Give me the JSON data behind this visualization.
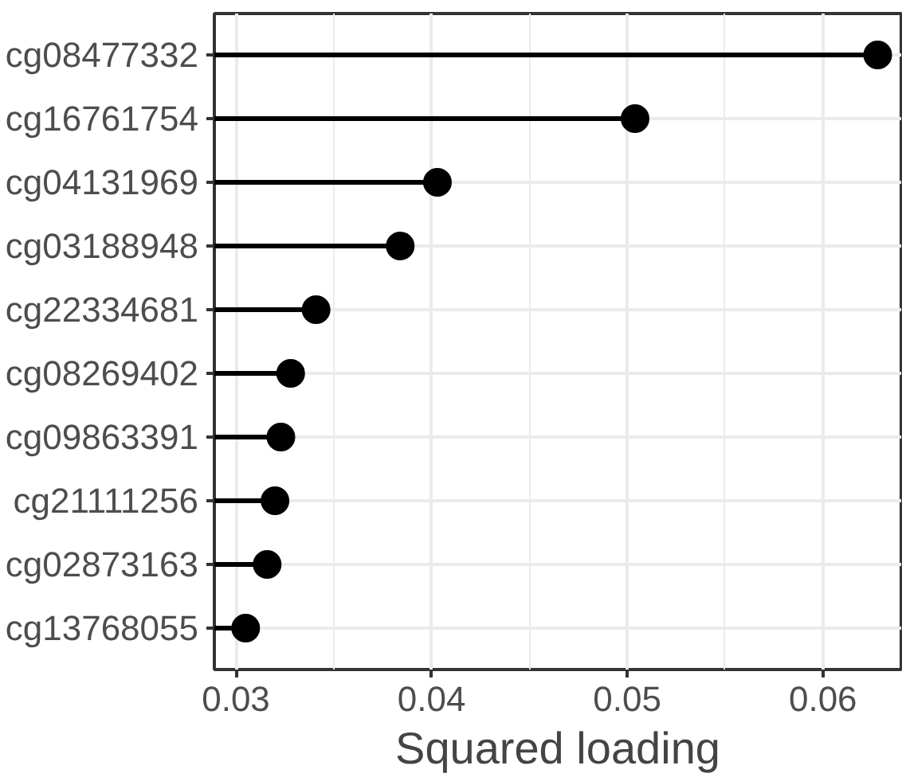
{
  "chart_data": {
    "type": "lollipop",
    "orientation": "horizontal",
    "xlabel": "Squared loading",
    "categories": [
      "cg08477332",
      "cg16761754",
      "cg04131969",
      "cg03188948",
      "cg22334681",
      "cg08269402",
      "cg09863391",
      "cg21111256",
      "cg02873163",
      "cg13768055"
    ],
    "values": [
      0.0628,
      0.0504,
      0.0403,
      0.0384,
      0.0341,
      0.0328,
      0.0323,
      0.032,
      0.0316,
      0.0305
    ],
    "color": "#000000",
    "xlim": [
      0.0289,
      0.064
    ],
    "xticks": [
      0.03,
      0.04,
      0.05,
      0.06
    ],
    "grid": true,
    "marker": "circle"
  }
}
